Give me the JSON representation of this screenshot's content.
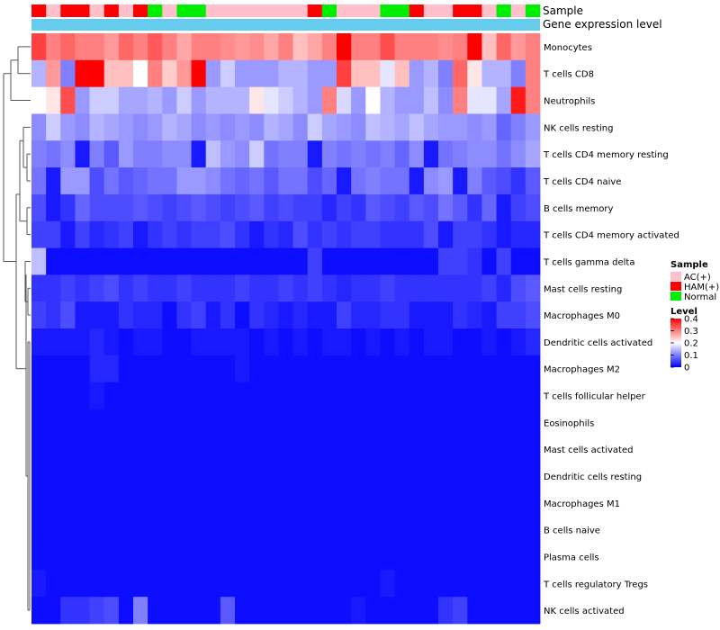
{
  "chart_data": {
    "type": "heatmap",
    "annotation_titles": [
      "Sample",
      "Gene expression level"
    ],
    "sample_groups": [
      "HAM",
      "AC",
      "HAM",
      "HAM",
      "AC",
      "HAM",
      "AC",
      "HAM",
      "Normal",
      "AC",
      "Normal",
      "Normal",
      "AC",
      "AC",
      "AC",
      "AC",
      "AC",
      "AC",
      "AC",
      "HAM",
      "Normal",
      "AC",
      "AC",
      "AC",
      "Normal",
      "Normal",
      "HAM",
      "AC",
      "AC",
      "HAM",
      "HAM",
      "AC",
      "Normal",
      "AC",
      "Normal"
    ],
    "rows": [
      "Monocytes",
      "T cells CD8",
      "Neutrophils",
      "NK cells resting",
      "T cells CD4 memory resting",
      "T cells CD4 naive",
      "B cells memory",
      "T cells CD4 memory activated",
      "T cells gamma delta",
      "Mast cells resting",
      "Macrophages M0",
      "Dendritic cells activated",
      "Macrophages M2",
      "T cells follicular helper",
      "Eosinophils",
      "Mast cells activated",
      "Dendritic cells resting",
      "Macrophages M1",
      "B cells naive",
      "Plasma cells",
      "T cells regulatory  Tregs",
      "NK cells activated"
    ],
    "matrix": [
      [
        0.35,
        0.3,
        0.32,
        0.3,
        0.3,
        0.28,
        0.32,
        0.3,
        0.33,
        0.3,
        0.27,
        0.3,
        0.3,
        0.29,
        0.28,
        0.29,
        0.27,
        0.3,
        0.25,
        0.27,
        0.3,
        0.4,
        0.3,
        0.3,
        0.34,
        0.3,
        0.3,
        0.3,
        0.29,
        0.3,
        0.4,
        0.25,
        0.32,
        0.28,
        0.3
      ],
      [
        0.14,
        0.28,
        0.1,
        0.4,
        0.4,
        0.25,
        0.25,
        0.2,
        0.3,
        0.24,
        0.28,
        0.4,
        0.12,
        0.16,
        0.12,
        0.12,
        0.12,
        0.14,
        0.14,
        0.12,
        0.12,
        0.35,
        0.25,
        0.25,
        0.18,
        0.25,
        0.12,
        0.14,
        0.1,
        0.32,
        0.22,
        0.14,
        0.14,
        0.1,
        0.3
      ],
      [
        0.2,
        0.22,
        0.34,
        0.12,
        0.16,
        0.16,
        0.13,
        0.13,
        0.14,
        0.12,
        0.16,
        0.12,
        0.14,
        0.14,
        0.14,
        0.22,
        0.18,
        0.16,
        0.14,
        0.12,
        0.3,
        0.17,
        0.12,
        0.2,
        0.14,
        0.12,
        0.12,
        0.15,
        0.11,
        0.3,
        0.18,
        0.18,
        0.13,
        0.38,
        0.3
      ],
      [
        0.11,
        0.16,
        0.12,
        0.11,
        0.14,
        0.13,
        0.12,
        0.11,
        0.12,
        0.14,
        0.13,
        0.11,
        0.12,
        0.11,
        0.12,
        0.11,
        0.14,
        0.13,
        0.11,
        0.16,
        0.13,
        0.12,
        0.11,
        0.15,
        0.14,
        0.13,
        0.15,
        0.13,
        0.12,
        0.12,
        0.11,
        0.12,
        0.08,
        0.1,
        0.12
      ],
      [
        0.1,
        0.09,
        0.11,
        0.02,
        0.1,
        0.07,
        0.12,
        0.1,
        0.1,
        0.11,
        0.11,
        0.02,
        0.15,
        0.12,
        0.11,
        0.16,
        0.09,
        0.1,
        0.1,
        0.02,
        0.1,
        0.09,
        0.1,
        0.09,
        0.1,
        0.08,
        0.11,
        0.02,
        0.09,
        0.1,
        0.11,
        0.11,
        0.09,
        0.11,
        0.13
      ],
      [
        0.09,
        0.02,
        0.12,
        0.12,
        0.06,
        0.09,
        0.07,
        0.08,
        0.09,
        0.09,
        0.12,
        0.12,
        0.11,
        0.09,
        0.08,
        0.09,
        0.07,
        0.09,
        0.09,
        0.06,
        0.08,
        0.02,
        0.09,
        0.1,
        0.09,
        0.09,
        0.02,
        0.11,
        0.12,
        0.02,
        0.1,
        0.07,
        0.06,
        0.04,
        0.07
      ],
      [
        0.06,
        0.02,
        0.04,
        0.08,
        0.06,
        0.06,
        0.06,
        0.07,
        0.06,
        0.05,
        0.06,
        0.07,
        0.06,
        0.05,
        0.06,
        0.07,
        0.05,
        0.06,
        0.05,
        0.05,
        0.03,
        0.05,
        0.04,
        0.07,
        0.06,
        0.05,
        0.07,
        0.06,
        0.09,
        0.07,
        0.04,
        0.08,
        0.02,
        0.05,
        0.06
      ],
      [
        0.05,
        0.05,
        0.02,
        0.05,
        0.03,
        0.04,
        0.05,
        0.02,
        0.04,
        0.05,
        0.04,
        0.05,
        0.05,
        0.06,
        0.04,
        0.02,
        0.04,
        0.03,
        0.06,
        0.04,
        0.05,
        0.04,
        0.05,
        0.05,
        0.04,
        0.04,
        0.04,
        0.06,
        0.02,
        0.05,
        0.05,
        0.04,
        0.02,
        0.03,
        0.03
      ],
      [
        0.15,
        0.01,
        0.01,
        0.01,
        0.01,
        0.01,
        0.01,
        0.01,
        0.01,
        0.01,
        0.01,
        0.01,
        0.01,
        0.01,
        0.01,
        0.01,
        0.01,
        0.01,
        0.01,
        0.05,
        0.01,
        0.01,
        0.01,
        0.01,
        0.01,
        0.01,
        0.01,
        0.01,
        0.05,
        0.05,
        0.04,
        0.01,
        0.05,
        0.01,
        0.01
      ],
      [
        0.04,
        0.04,
        0.05,
        0.04,
        0.05,
        0.06,
        0.04,
        0.05,
        0.04,
        0.04,
        0.05,
        0.04,
        0.04,
        0.04,
        0.05,
        0.04,
        0.04,
        0.05,
        0.04,
        0.05,
        0.04,
        0.03,
        0.04,
        0.04,
        0.05,
        0.04,
        0.04,
        0.04,
        0.04,
        0.04,
        0.04,
        0.05,
        0.03,
        0.06,
        0.07
      ],
      [
        0.05,
        0.04,
        0.06,
        0.02,
        0.02,
        0.02,
        0.04,
        0.03,
        0.03,
        0.01,
        0.04,
        0.05,
        0.02,
        0.04,
        0.01,
        0.04,
        0.03,
        0.02,
        0.03,
        0.02,
        0.02,
        0.05,
        0.03,
        0.03,
        0.04,
        0.04,
        0.02,
        0.02,
        0.02,
        0.04,
        0.03,
        0.02,
        0.05,
        0.05,
        0.06
      ],
      [
        0.02,
        0.02,
        0.02,
        0.02,
        0.03,
        0.02,
        0.01,
        0.02,
        0.02,
        0.01,
        0.01,
        0.02,
        0.02,
        0.02,
        0.02,
        0.01,
        0.02,
        0.01,
        0.02,
        0.01,
        0.02,
        0.02,
        0.01,
        0.02,
        0.01,
        0.02,
        0.01,
        0.02,
        0.02,
        0.01,
        0.01,
        0.02,
        0.01,
        0.02,
        0.03
      ],
      [
        0.01,
        0.01,
        0.01,
        0.01,
        0.03,
        0.03,
        0.01,
        0.01,
        0.01,
        0.01,
        0.01,
        0.01,
        0.01,
        0.01,
        0.02,
        0.01,
        0.01,
        0.01,
        0.01,
        0.01,
        0.01,
        0.01,
        0.01,
        0.01,
        0.01,
        0.01,
        0.01,
        0.01,
        0.01,
        0.01,
        0.01,
        0.01,
        0.01,
        0.01,
        0.01
      ],
      [
        0.01,
        0.01,
        0.01,
        0.01,
        0.02,
        0.01,
        0.01,
        0.01,
        0.01,
        0.01,
        0.01,
        0.01,
        0.01,
        0.01,
        0.01,
        0.01,
        0.01,
        0.01,
        0.01,
        0.01,
        0.01,
        0.01,
        0.01,
        0.01,
        0.01,
        0.01,
        0.01,
        0.01,
        0.01,
        0.01,
        0.01,
        0.01,
        0.01,
        0.01,
        0.01
      ],
      [
        0.01,
        0.01,
        0.01,
        0.01,
        0.01,
        0.01,
        0.01,
        0.01,
        0.01,
        0.01,
        0.01,
        0.01,
        0.01,
        0.01,
        0.01,
        0.01,
        0.01,
        0.01,
        0.01,
        0.01,
        0.01,
        0.01,
        0.01,
        0.01,
        0.01,
        0.01,
        0.01,
        0.01,
        0.01,
        0.01,
        0.01,
        0.01,
        0.01,
        0.01,
        0.01
      ],
      [
        0.01,
        0.01,
        0.01,
        0.01,
        0.01,
        0.01,
        0.01,
        0.01,
        0.01,
        0.01,
        0.01,
        0.01,
        0.01,
        0.01,
        0.01,
        0.01,
        0.01,
        0.01,
        0.01,
        0.01,
        0.01,
        0.01,
        0.01,
        0.01,
        0.01,
        0.01,
        0.01,
        0.01,
        0.01,
        0.01,
        0.01,
        0.01,
        0.01,
        0.01,
        0.01
      ],
      [
        0.01,
        0.01,
        0.01,
        0.01,
        0.01,
        0.01,
        0.01,
        0.01,
        0.01,
        0.01,
        0.01,
        0.01,
        0.01,
        0.01,
        0.01,
        0.01,
        0.01,
        0.01,
        0.01,
        0.01,
        0.01,
        0.01,
        0.01,
        0.01,
        0.01,
        0.01,
        0.01,
        0.01,
        0.01,
        0.01,
        0.01,
        0.01,
        0.01,
        0.01,
        0.01
      ],
      [
        0.01,
        0.01,
        0.01,
        0.01,
        0.01,
        0.01,
        0.01,
        0.01,
        0.01,
        0.01,
        0.01,
        0.01,
        0.01,
        0.01,
        0.01,
        0.01,
        0.01,
        0.01,
        0.01,
        0.01,
        0.01,
        0.01,
        0.01,
        0.01,
        0.01,
        0.01,
        0.01,
        0.01,
        0.01,
        0.01,
        0.01,
        0.01,
        0.01,
        0.01,
        0.01
      ],
      [
        0.01,
        0.01,
        0.01,
        0.01,
        0.01,
        0.01,
        0.01,
        0.01,
        0.01,
        0.01,
        0.01,
        0.01,
        0.01,
        0.01,
        0.01,
        0.01,
        0.01,
        0.01,
        0.01,
        0.01,
        0.01,
        0.01,
        0.01,
        0.01,
        0.01,
        0.01,
        0.01,
        0.01,
        0.01,
        0.01,
        0.01,
        0.01,
        0.01,
        0.01,
        0.01
      ],
      [
        0.01,
        0.01,
        0.01,
        0.01,
        0.01,
        0.01,
        0.01,
        0.01,
        0.01,
        0.01,
        0.01,
        0.01,
        0.01,
        0.01,
        0.01,
        0.01,
        0.01,
        0.01,
        0.01,
        0.01,
        0.01,
        0.01,
        0.01,
        0.01,
        0.01,
        0.01,
        0.01,
        0.01,
        0.01,
        0.01,
        0.01,
        0.01,
        0.01,
        0.01,
        0.01
      ],
      [
        0.02,
        0.01,
        0.01,
        0.01,
        0.01,
        0.01,
        0.01,
        0.01,
        0.01,
        0.01,
        0.01,
        0.01,
        0.01,
        0.01,
        0.01,
        0.01,
        0.01,
        0.01,
        0.01,
        0.01,
        0.01,
        0.01,
        0.01,
        0.01,
        0.02,
        0.01,
        0.01,
        0.01,
        0.01,
        0.01,
        0.01,
        0.01,
        0.01,
        0.01,
        0.01
      ],
      [
        0.01,
        0.01,
        0.04,
        0.04,
        0.05,
        0.06,
        0.01,
        0.1,
        0.01,
        0.01,
        0.01,
        0.01,
        0.01,
        0.07,
        0.01,
        0.01,
        0.01,
        0.01,
        0.01,
        0.01,
        0.01,
        0.01,
        0.02,
        0.01,
        0.01,
        0.01,
        0.01,
        0.01,
        0.04,
        0.05,
        0.01,
        0.01,
        0.01,
        0.01,
        0.01
      ]
    ],
    "legend": {
      "sample_title": "Sample",
      "sample_entries": [
        {
          "key": "AC",
          "label": "AC(+)",
          "color": "#FFC0CB"
        },
        {
          "key": "HAM",
          "label": "HAM(+)",
          "color": "#FF0000"
        },
        {
          "key": "Normal",
          "label": "Normal",
          "color": "#00EE00"
        }
      ],
      "level_title": "Level",
      "level_ticks": [
        {
          "value": 0.4,
          "label": "0.4"
        },
        {
          "value": 0.3,
          "label": "0.3"
        },
        {
          "value": 0.2,
          "label": "0.2"
        },
        {
          "value": 0.1,
          "label": "0.1"
        },
        {
          "value": 0,
          "label": "0"
        }
      ]
    },
    "color_scale": {
      "min": 0,
      "mid": 0.2,
      "max": 0.4,
      "low": "#0000FF",
      "mid_color": "#FFFFFF",
      "high": "#FF0000"
    },
    "expression_bar_color": "#66CCEE",
    "dendrogram_color": "#555555"
  }
}
